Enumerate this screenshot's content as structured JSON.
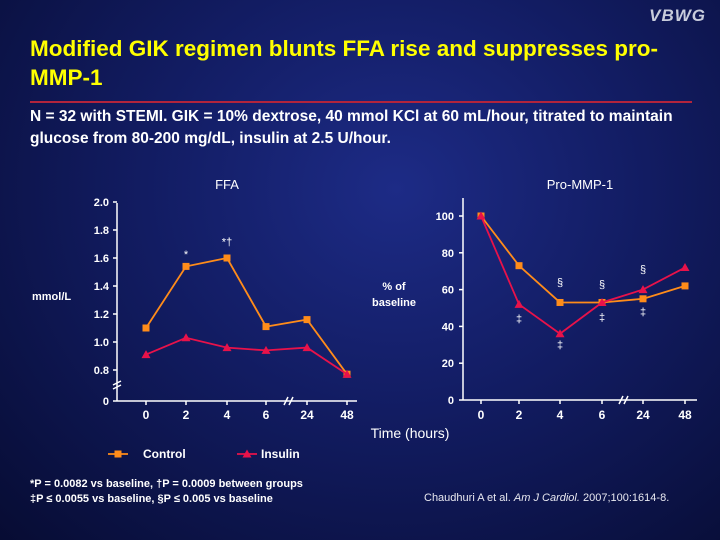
{
  "logo": "VBWG",
  "title": "Modified GIK regimen blunts FFA rise and suppresses pro-MMP-1",
  "subtitle": "N = 32 with STEMI. GIK = 10% dextrose, 40 mmol KCl at 60 mL/hour, titrated to maintain glucose from 80-200 mg/dL, insulin at 2.5 U/hour.",
  "colors": {
    "control": "#ff8c1a",
    "insulin": "#e8124a",
    "axis": "#ffffff",
    "title": "#ffff00",
    "rule": "#b2243c"
  },
  "xlabel": "Time (hours)",
  "legend": [
    {
      "name": "Control",
      "color": "#ff8c1a",
      "marker": "square"
    },
    {
      "name": "Insulin",
      "color": "#e8124a",
      "marker": "triangle"
    }
  ],
  "footnotes": {
    "line1": "*P = 0.0082 vs baseline, †P = 0.0009 between groups",
    "line2": "‡P ≤ 0.0055 vs baseline, §P ≤ 0.005 vs baseline"
  },
  "citation": {
    "authors": "Chaudhuri A et al.",
    "journal": "Am J Cardiol.",
    "details": "2007;100:1614-8."
  },
  "chart_data": [
    {
      "type": "line",
      "title": "FFA",
      "ylabel": "mmol/L",
      "xlabel": "Time (hours)",
      "categories": [
        "0",
        "2",
        "4",
        "6",
        "24",
        "48"
      ],
      "yticks": [
        "0",
        "0.8",
        "1.0",
        "1.2",
        "1.4",
        "1.6",
        "1.8",
        "2.0"
      ],
      "ylim": [
        0.7,
        2.0
      ],
      "axis_break": true,
      "series": [
        {
          "name": "Control",
          "values": [
            1.1,
            1.54,
            1.6,
            1.11,
            1.16,
            0.77
          ]
        },
        {
          "name": "Insulin",
          "values": [
            0.91,
            1.03,
            0.96,
            0.94,
            0.96,
            0.77
          ]
        }
      ],
      "annotations": [
        {
          "text": "*",
          "x": "2",
          "y": 1.6
        },
        {
          "text": "*†",
          "x": "4",
          "y": 1.69
        }
      ]
    },
    {
      "type": "line",
      "title": "Pro-MMP-1",
      "ylabel": "% of baseline",
      "xlabel": "Time (hours)",
      "categories": [
        "0",
        "2",
        "4",
        "6",
        "24",
        "48"
      ],
      "yticks": [
        "0",
        "20",
        "40",
        "60",
        "80",
        "100"
      ],
      "ylim": [
        0,
        105
      ],
      "series": [
        {
          "name": "Control",
          "values": [
            100,
            73,
            53,
            53,
            55,
            62
          ]
        },
        {
          "name": "Insulin",
          "values": [
            100,
            52,
            36,
            53,
            60,
            72
          ]
        }
      ],
      "annotations": [
        {
          "text": "‡",
          "x": "2",
          "y": 42
        },
        {
          "text": "§",
          "x": "4",
          "y": 62
        },
        {
          "text": "‡",
          "x": "4",
          "y": 28
        },
        {
          "text": "§",
          "x": "6",
          "y": 61
        },
        {
          "text": "‡",
          "x": "6",
          "y": 43
        },
        {
          "text": "§",
          "x": "24",
          "y": 69
        },
        {
          "text": "‡",
          "x": "24",
          "y": 46
        }
      ]
    }
  ]
}
